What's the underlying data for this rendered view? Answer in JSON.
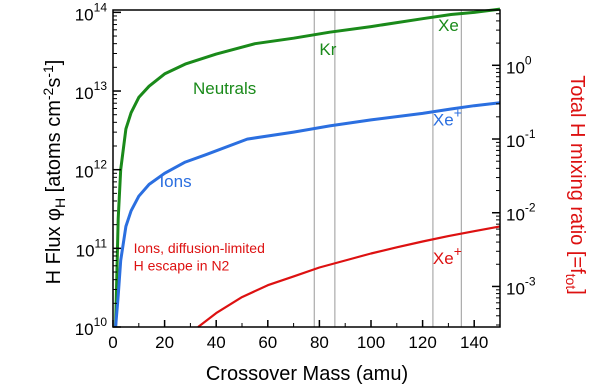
{
  "chart_data": {
    "type": "line",
    "title": "",
    "xlabel": "Crossover Mass (amu)",
    "ylabel_left": {
      "main": "H Flux ",
      "phi": "φ",
      "phi_sub": "H",
      "rest": " [atoms cm",
      "exp1": "-2",
      "mid": "s",
      "exp2": "-1",
      "end": "]"
    },
    "ylabel_right": {
      "main": "Total H mixing ratio [=f",
      "sub": "tot",
      "end": "]"
    },
    "xlim": [
      0,
      150
    ],
    "ylim_left_log10": [
      10,
      14.03
    ],
    "ylim_right_log10": [
      -3.55,
      0.75
    ],
    "x_ticks": [
      "0",
      "20",
      "40",
      "60",
      "80",
      "100",
      "120",
      "140"
    ],
    "y_ticks_left": [
      {
        "base": "10",
        "exp": "10",
        "log": 10
      },
      {
        "base": "10",
        "exp": "11",
        "log": 11
      },
      {
        "base": "10",
        "exp": "12",
        "log": 12
      },
      {
        "base": "10",
        "exp": "13",
        "log": 13
      },
      {
        "base": "10",
        "exp": "14",
        "log": 14
      }
    ],
    "y_ticks_right": [
      {
        "base": "10",
        "exp": "0",
        "log": 0
      },
      {
        "base": "10",
        "exp": "-1",
        "log": -1
      },
      {
        "base": "10",
        "exp": "-2",
        "log": -2
      },
      {
        "base": "10",
        "exp": "-3",
        "log": -3
      }
    ],
    "reference_lines_x": [
      78,
      86,
      124,
      135
    ],
    "series": [
      {
        "name": "Neutrals",
        "color": "#1a8a1a",
        "x": [
          1,
          2,
          3,
          5,
          7,
          10,
          14,
          20,
          28,
          40,
          55,
          70,
          84,
          100,
          120,
          131,
          140,
          150
        ],
        "y": [
          10000000000.0,
          240000000000.0,
          1000000000000.0,
          3300000000000.0,
          5300000000000.0,
          8300000000000.0,
          11500000000000.0,
          16500000000000.0,
          22000000000000.0,
          29500000000000.0,
          40000000000000.0,
          47000000000000.0,
          56000000000000.0,
          66000000000000.0,
          83000000000000.0,
          94000000000000.0,
          100000000000000.0,
          110000000000000.0
        ]
      },
      {
        "name": "Ions",
        "color": "#2b6fe0",
        "x": [
          1,
          2,
          3,
          5,
          7,
          10,
          14,
          20,
          28,
          36,
          52,
          70,
          84,
          100,
          120,
          131,
          140,
          150
        ],
        "y": [
          10000000000.0,
          25000000000.0,
          70000000000.0,
          190000000000.0,
          300000000000.0,
          460000000000.0,
          650000000000.0,
          900000000000.0,
          1250000000000.0,
          1550000000000.0,
          2450000000000.0,
          3000000000000.0,
          3600000000000.0,
          4300000000000.0,
          5200000000000.0,
          5900000000000.0,
          6500000000000.0,
          7100000000000.0
        ]
      },
      {
        "name": "Ions, diffusion-limited H escape in N2",
        "color": "#dd1111",
        "x": [
          33,
          40,
          50,
          60,
          70,
          80,
          90,
          100,
          110,
          120,
          130,
          140,
          150
        ],
        "y": [
          10000000000.0,
          15000000000.0,
          24000000000.0,
          34000000000.0,
          44000000000.0,
          57000000000.0,
          70000000000.0,
          86000000000.0,
          103000000000.0,
          122000000000.0,
          143000000000.0,
          165000000000.0,
          190000000000.0
        ]
      }
    ],
    "annotations": [
      {
        "text": "Neutrals",
        "color": "#1a8a1a",
        "x": 31,
        "y_log": 12.96
      },
      {
        "text": "Ions",
        "color": "#2b6fe0",
        "x": 18,
        "y_log": 11.78
      },
      {
        "text": "Ions, diffusion-limited",
        "color": "#dd1111",
        "x": 8,
        "y_log": 10.94
      },
      {
        "text": "H escape in N2",
        "color": "#dd1111",
        "x": 8,
        "y_log": 10.72
      },
      {
        "text": "Kr",
        "color": "#1a8a1a",
        "x": 80,
        "y_log": 13.46,
        "sup": ""
      },
      {
        "text": "Xe",
        "color": "#1a8a1a",
        "x": 126,
        "y_log": 13.76,
        "sup": ""
      },
      {
        "text": "Xe",
        "color": "#2b6fe0",
        "x": 124,
        "y_log": 12.56,
        "sup": "+"
      },
      {
        "text": "Xe",
        "color": "#dd1111",
        "x": 124,
        "y_log": 10.8,
        "sup": "+"
      }
    ],
    "axis_colors": {
      "left": "#000000",
      "right": "#dd1111"
    },
    "grid": false
  }
}
